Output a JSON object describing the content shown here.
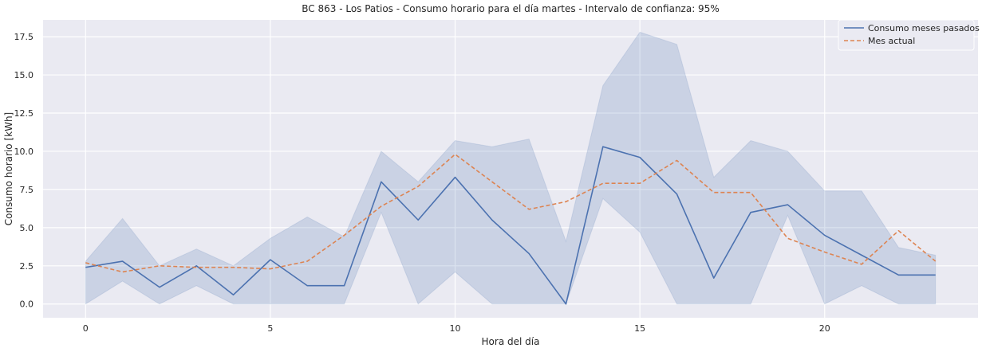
{
  "chart_data": {
    "type": "line",
    "title": "BC 863 - Los Patios - Consumo horario para el día martes - Intervalo de confianza: 95%",
    "xlabel": "Hora del día",
    "ylabel": "Consumo horario [kWh]",
    "xlim": [
      -1.15,
      24.15
    ],
    "ylim": [
      -0.9,
      18.6
    ],
    "xticks": [
      0,
      5,
      10,
      15,
      20
    ],
    "xtick_labels": [
      "0",
      "5",
      "10",
      "15",
      "20"
    ],
    "yticks": [
      0.0,
      2.5,
      5.0,
      7.5,
      10.0,
      12.5,
      15.0,
      17.5
    ],
    "ytick_labels": [
      "0.0",
      "2.5",
      "5.0",
      "7.5",
      "10.0",
      "12.5",
      "15.0",
      "17.5"
    ],
    "grid": true,
    "legend_position": "top-right",
    "x": [
      0,
      1,
      2,
      3,
      4,
      5,
      6,
      7,
      8,
      9,
      10,
      11,
      12,
      13,
      14,
      15,
      16,
      17,
      18,
      19,
      20,
      21,
      22,
      23
    ],
    "series": [
      {
        "name": "Consumo meses pasados",
        "style": "solid",
        "color": "#4c72b0",
        "values": [
          2.4,
          2.8,
          1.1,
          2.5,
          0.6,
          2.9,
          1.2,
          1.2,
          8.0,
          5.5,
          8.3,
          5.5,
          3.3,
          0.0,
          10.3,
          9.6,
          7.2,
          1.7,
          6.0,
          6.5,
          4.5,
          3.2,
          1.9,
          1.9
        ],
        "ci_lower": [
          0.0,
          1.5,
          0.0,
          1.2,
          0.0,
          0.0,
          0.0,
          0.0,
          6.0,
          0.0,
          2.1,
          0.0,
          0.0,
          0.0,
          6.9,
          4.7,
          0.0,
          0.0,
          0.0,
          5.8,
          0.0,
          1.2,
          0.0,
          0.0
        ],
        "ci_upper": [
          2.8,
          5.6,
          2.5,
          3.6,
          2.5,
          4.3,
          5.7,
          4.4,
          10.0,
          8.0,
          10.7,
          10.3,
          10.8,
          4.1,
          14.3,
          17.8,
          17.0,
          8.3,
          10.7,
          10.0,
          7.4,
          7.4,
          3.7,
          3.2
        ],
        "ci_color": "#4c72b0"
      },
      {
        "name": "Mes actual",
        "style": "dashed",
        "color": "#dd8452",
        "values": [
          2.7,
          2.1,
          2.5,
          2.4,
          2.4,
          2.3,
          2.8,
          4.5,
          6.4,
          7.7,
          9.8,
          8.0,
          6.2,
          6.7,
          7.9,
          7.9,
          9.4,
          7.3,
          7.3,
          4.3,
          3.4,
          2.6,
          4.8,
          2.8
        ]
      }
    ]
  }
}
